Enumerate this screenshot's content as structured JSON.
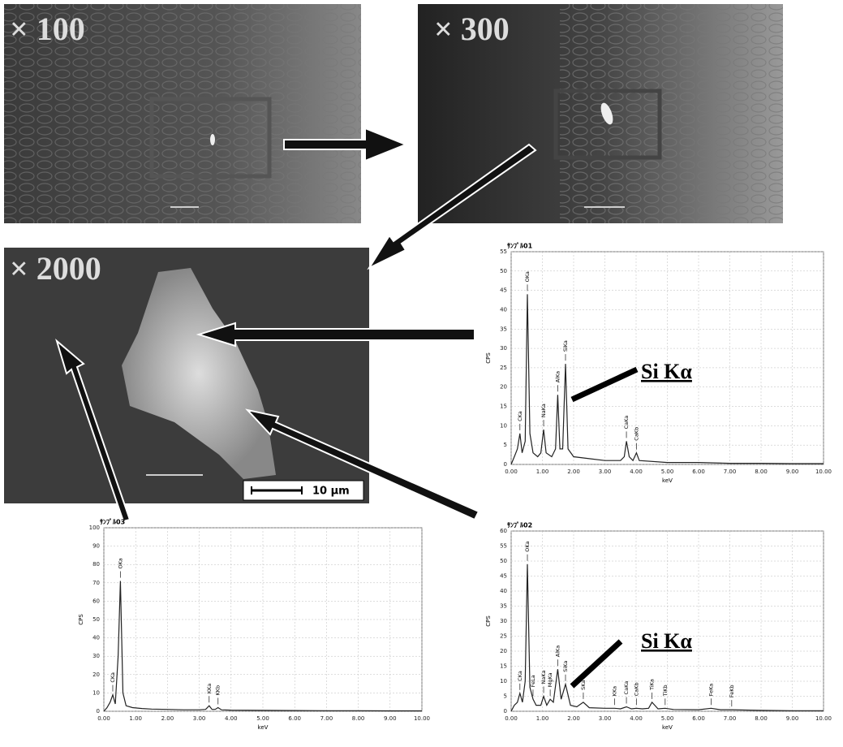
{
  "images": [
    {
      "label": "× 100"
    },
    {
      "label": "× 300"
    },
    {
      "label": "× 2000"
    }
  ],
  "scale_bar": "10 μm",
  "chart_data": [
    {
      "type": "line",
      "title": "ｻﾝﾌﾟﾙ01",
      "xlabel": "keV",
      "ylabel": "CPS",
      "color": "#222",
      "grid": true,
      "annotation": "Si Kα",
      "xlim": [
        0,
        10
      ],
      "ylim": [
        0,
        55
      ],
      "xticks": [
        {
          "value": 0,
          "label": "0.00"
        },
        {
          "value": 1,
          "label": "1.00"
        },
        {
          "value": 2,
          "label": "2.00"
        },
        {
          "value": 3,
          "label": "3.00"
        },
        {
          "value": 4,
          "label": "4.00"
        },
        {
          "value": 5,
          "label": "5.00"
        },
        {
          "value": 6,
          "label": "6.00"
        },
        {
          "value": 7,
          "label": "7.00"
        },
        {
          "value": 8,
          "label": "8.00"
        },
        {
          "value": 9,
          "label": "9.00"
        },
        {
          "value": 10,
          "label": "10.00"
        }
      ],
      "yticks": [
        0,
        5,
        10,
        15,
        20,
        25,
        30,
        35,
        40,
        45,
        50,
        55
      ],
      "x": [
        0,
        0.1,
        0.2,
        0.28,
        0.35,
        0.45,
        0.52,
        0.6,
        0.7,
        0.85,
        0.95,
        1.04,
        1.12,
        1.3,
        1.42,
        1.49,
        1.56,
        1.65,
        1.74,
        1.82,
        2.0,
        2.5,
        3.0,
        3.5,
        3.62,
        3.69,
        3.78,
        3.9,
        4.01,
        4.1,
        5,
        6,
        7,
        8,
        9,
        10
      ],
      "values": [
        0,
        2,
        4,
        8,
        3,
        6,
        44,
        8,
        3,
        2,
        3,
        9,
        3,
        2,
        4,
        18,
        4,
        4,
        26,
        4,
        2,
        1.5,
        1,
        1,
        2,
        6,
        2,
        1,
        3,
        1,
        0.5,
        0.5,
        0.3,
        0.3,
        0.2,
        0.2
      ],
      "peaks": [
        {
          "label": "CKa",
          "x": 0.28,
          "y": 8
        },
        {
          "label": "OKa",
          "x": 0.52,
          "y": 44
        },
        {
          "label": "NaKa",
          "x": 1.04,
          "y": 9
        },
        {
          "label": "AlKa",
          "x": 1.49,
          "y": 18
        },
        {
          "label": "SiKa",
          "x": 1.74,
          "y": 26
        },
        {
          "label": "CaKa",
          "x": 3.69,
          "y": 6
        },
        {
          "label": "CaKb",
          "x": 4.01,
          "y": 3
        }
      ]
    },
    {
      "type": "line",
      "title": "ｻﾝﾌﾟﾙ03",
      "xlabel": "keV",
      "ylabel": "CPS",
      "color": "#222",
      "grid": true,
      "xlim": [
        0,
        10
      ],
      "ylim": [
        0,
        100
      ],
      "xticks": [
        {
          "value": 0,
          "label": "0.00"
        },
        {
          "value": 1,
          "label": "1.00"
        },
        {
          "value": 2,
          "label": "2.00"
        },
        {
          "value": 3,
          "label": "3.00"
        },
        {
          "value": 4,
          "label": "4.00"
        },
        {
          "value": 5,
          "label": "5.00"
        },
        {
          "value": 6,
          "label": "6.00"
        },
        {
          "value": 7,
          "label": "7.00"
        },
        {
          "value": 8,
          "label": "8.00"
        },
        {
          "value": 9,
          "label": "9.00"
        },
        {
          "value": 10,
          "label": "10.00"
        }
      ],
      "yticks": [
        0,
        10,
        20,
        30,
        40,
        50,
        60,
        70,
        80,
        90,
        100
      ],
      "x": [
        0,
        0.1,
        0.2,
        0.28,
        0.36,
        0.45,
        0.52,
        0.6,
        0.7,
        0.9,
        1.2,
        1.5,
        2,
        2.5,
        3,
        3.2,
        3.31,
        3.4,
        3.5,
        3.59,
        3.7,
        4,
        5,
        6,
        7,
        8,
        9,
        10
      ],
      "values": [
        0,
        2,
        5,
        9,
        4,
        30,
        71,
        10,
        3,
        2,
        1.5,
        1.2,
        1,
        0.8,
        0.8,
        1,
        3,
        1,
        1,
        2,
        0.8,
        0.6,
        0.5,
        0.4,
        0.3,
        0.3,
        0.2,
        0.2
      ],
      "peaks": [
        {
          "label": "CKa",
          "x": 0.28,
          "y": 9
        },
        {
          "label": "OKa",
          "x": 0.52,
          "y": 71
        },
        {
          "label": "KKa",
          "x": 3.31,
          "y": 3
        },
        {
          "label": "KKb",
          "x": 3.59,
          "y": 2
        }
      ]
    },
    {
      "type": "line",
      "title": "ｻﾝﾌﾟﾙ02",
      "xlabel": "keV",
      "ylabel": "CPS",
      "color": "#222",
      "grid": true,
      "annotation": "Si Kα",
      "xlim": [
        0,
        10
      ],
      "ylim": [
        0,
        60
      ],
      "xticks": [
        {
          "value": 0,
          "label": "0.00"
        },
        {
          "value": 1,
          "label": "1.00"
        },
        {
          "value": 2,
          "label": "2.00"
        },
        {
          "value": 3,
          "label": "3.00"
        },
        {
          "value": 4,
          "label": "4.00"
        },
        {
          "value": 5,
          "label": "5.00"
        },
        {
          "value": 6,
          "label": "6.00"
        },
        {
          "value": 7,
          "label": "7.00"
        },
        {
          "value": 8,
          "label": "8.00"
        },
        {
          "value": 9,
          "label": "9.00"
        },
        {
          "value": 10,
          "label": "10.00"
        }
      ],
      "yticks": [
        0,
        5,
        10,
        15,
        20,
        25,
        30,
        35,
        40,
        45,
        50,
        55,
        60
      ],
      "x": [
        0,
        0.1,
        0.2,
        0.28,
        0.36,
        0.45,
        0.52,
        0.6,
        0.7,
        0.8,
        0.95,
        1.04,
        1.14,
        1.25,
        1.35,
        1.49,
        1.6,
        1.74,
        1.9,
        2.1,
        2.31,
        2.5,
        3.0,
        3.31,
        3.5,
        3.69,
        3.85,
        4.01,
        4.2,
        4.4,
        4.51,
        4.7,
        4.93,
        5.2,
        6,
        6.4,
        6.7,
        7.06,
        7.5,
        8,
        9,
        10
      ],
      "values": [
        0,
        2,
        3,
        6,
        3,
        10,
        49,
        8,
        4,
        2,
        2,
        5,
        2,
        4,
        3,
        14,
        4,
        9,
        2,
        1.5,
        3,
        1.2,
        1,
        1,
        0.8,
        1.5,
        0.8,
        1,
        0.8,
        1,
        3,
        0.8,
        1,
        0.6,
        0.5,
        1,
        0.5,
        0.5,
        0.4,
        0.3,
        0.2,
        0.2
      ],
      "peaks": [
        {
          "label": "CKa",
          "x": 0.28,
          "y": 6
        },
        {
          "label": "OKa",
          "x": 0.52,
          "y": 49
        },
        {
          "label": "FeLa",
          "x": 0.7,
          "y": 4
        },
        {
          "label": "NaKa",
          "x": 1.04,
          "y": 5
        },
        {
          "label": "MgKa",
          "x": 1.25,
          "y": 4
        },
        {
          "label": "AlKa",
          "x": 1.49,
          "y": 14
        },
        {
          "label": "SiKa",
          "x": 1.74,
          "y": 9
        },
        {
          "label": "SKa",
          "x": 2.31,
          "y": 3
        },
        {
          "label": "KKa",
          "x": 3.31,
          "y": 1
        },
        {
          "label": "CaKa",
          "x": 3.69,
          "y": 1.5
        },
        {
          "label": "CaKb",
          "x": 4.01,
          "y": 1
        },
        {
          "label": "TiKa",
          "x": 4.51,
          "y": 3
        },
        {
          "label": "TiKb",
          "x": 4.93,
          "y": 1
        },
        {
          "label": "FeKa",
          "x": 6.4,
          "y": 1
        },
        {
          "label": "FeKb",
          "x": 7.06,
          "y": 0.5
        }
      ]
    }
  ]
}
